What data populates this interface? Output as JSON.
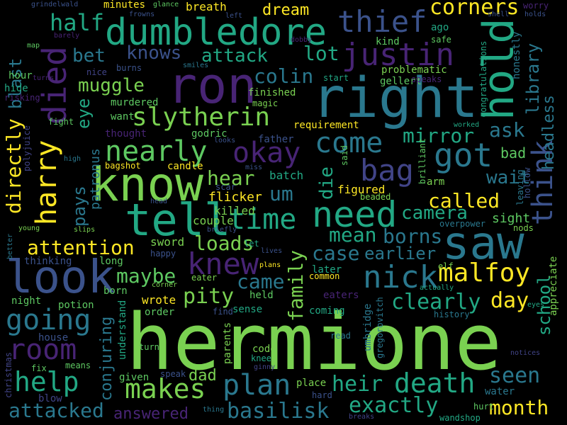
{
  "palette": {
    "background": "#000000",
    "lime": "#7ad151",
    "yellow": "#fde725",
    "green": "#5ec962",
    "teal": "#22a884",
    "cyan": "#2a788e",
    "blue": "#3b528b",
    "indigo": "#414487",
    "purple": "#482475",
    "dark": "#440154"
  },
  "words": {
    "hermione": "hermione",
    "right": "right",
    "know": "know",
    "ron": "ron",
    "look": "look",
    "dumbledore": "dumbledore",
    "tell": "tell",
    "saw": "saw",
    "need": "need",
    "hold": "hold",
    "died": "died",
    "slytherin": "slytherin",
    "harry": "harry",
    "think": "think",
    "justin": "justin",
    "death": "death",
    "nick": "nick",
    "malfoy": "malfoy",
    "knew": "knew",
    "thief": "thief",
    "going": "going",
    "room": "room",
    "plan": "plan",
    "time": "time",
    "makes": "makes",
    "got": "got",
    "nearly": "nearly",
    "okay": "okay",
    "come": "come",
    "bag": "bag",
    "help": "help",
    "basilisk": "basilisk",
    "exactly": "exactly",
    "attacked": "attacked",
    "heir": "heir",
    "attention": "attention",
    "month": "month",
    "corners": "corners",
    "clearly": "clearly",
    "half": "half",
    "mirror": "mirror",
    "called": "called",
    "maybe": "maybe",
    "attack": "attack",
    "knows": "knows",
    "lot": "lot",
    "bet": "bet",
    "muggle": "muggle",
    "colin": "colin",
    "loads": "loads",
    "pity": "pity",
    "day": "day",
    "camera": "camera",
    "seen": "seen",
    "case": "case",
    "borns": "borns",
    "mean": "mean",
    "earlier": "earlier",
    "ask": "ask",
    "hear": "hear",
    "um": "um",
    "wait": "wait",
    "came": "came",
    "die": "die",
    "family": "family",
    "directly": "directly",
    "blast": "blast",
    "library": "library",
    "headless": "headless",
    "school": "school",
    "pays": "pays",
    "eye": "eye",
    "conjuring": "conjuring",
    "dream": "dream",
    "bad": "bad",
    "patronus": "patronus",
    "sight": "sight",
    "answered": "answered",
    "dad": "dad",
    "sword": "sword",
    "flicker": "flicker",
    "figured": "figured",
    "killed": "killed",
    "couple": "couple",
    "potion": "potion",
    "born": "born",
    "wrote": "wrote",
    "order": "order",
    "sense": "sense",
    "coming": "coming",
    "held": "held",
    "eaters": "eaters",
    "later": "later",
    "breath": "breath",
    "minutes": "minutes",
    "finished": "finished",
    "murdered": "murdered",
    "magic": "magic",
    "want": "want",
    "nice": "nice",
    "burns": "burns",
    "requirement": "requirement",
    "worked": "worked",
    "godric": "godric",
    "thought": "thought",
    "father": "father",
    "candle": "candle",
    "bagshot": "bagshot",
    "batch": "batch",
    "scar": "scar",
    "miss": "miss",
    "problematic": "problematic",
    "gellert": "gellert",
    "start": "start",
    "speaks": "speaks",
    "ago": "ago",
    "safe": "safe",
    "kind": "kind",
    "honestly": "honestly",
    "congratulations": "congratulations",
    "brilliant": "brilliant",
    "leaving": "leaving",
    "arm": "arm",
    "hollow": "hollow",
    "overpower": "overpower",
    "nods": "nods",
    "appreciate": "appreciate",
    "actually": "actually",
    "eyes": "eyes",
    "history": "history",
    "umbridge": "umbridge",
    "gregorovitch": "gregorovitch",
    "elf": "elf",
    "common": "common",
    "plans": "plans",
    "lives": "lives",
    "let": "let",
    "briefly": "briefly",
    "slips": "slips",
    "young": "young",
    "better": "better",
    "thinking": "thinking",
    "long": "long",
    "happy": "happy",
    "eater": "eater",
    "corner": "corner",
    "night": "night",
    "house": "house",
    "christmas": "christmas",
    "fix": "fix",
    "means": "means",
    "blow": "blow",
    "given": "given",
    "speak": "speak",
    "understand": "understand",
    "turn": "turn",
    "parents": "parents",
    "code": "code",
    "knee": "knee",
    "ginny": "ginny",
    "read": "read",
    "place": "place",
    "hard": "hard",
    "breaks": "breaks",
    "thing": "thing",
    "hurt": "hurt",
    "water": "water",
    "wandshop": "wandshop",
    "notices": "notices",
    "find": "find",
    "grindelwald": "grindelwald",
    "frowns": "frowns",
    "glance": "glance",
    "left": "left",
    "shell": "shell",
    "holds": "holds",
    "worry": "worry",
    "map": "map",
    "hour": "hour",
    "barely": "barely",
    "smiles": "smiles",
    "dobby": "dobby",
    "hide": "hide",
    "risking": "risking",
    "turns": "turns",
    "fight": "fight",
    "polyjuice": "polyjuice",
    "high": "high",
    "looks": "looks",
    "head": "head",
    "said": "said",
    "beaded": "beaded"
  }
}
